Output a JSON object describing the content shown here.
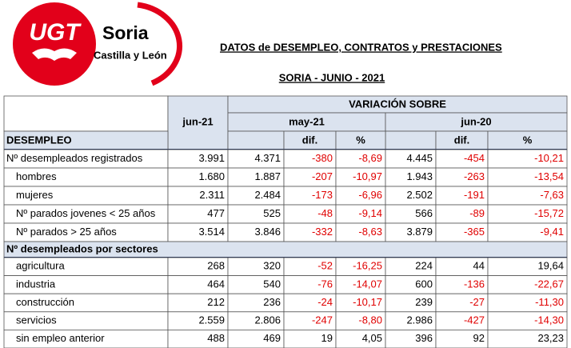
{
  "header": {
    "logo": "UGT",
    "org": "Soria",
    "region": "Castilla y León",
    "title": "DATOS de DESEMPLEO, CONTRATOS y PRESTACIONES",
    "subtitle": "SORIA - JUNIO - 2021"
  },
  "table": {
    "current": "jun-21",
    "group": "VARIACIÓN SOBRE",
    "periods": [
      "may-21",
      "jun-20"
    ],
    "subheaders": [
      "dif.",
      "%",
      "dif.",
      "%"
    ],
    "sections": [
      {
        "title": "DESEMPLEO",
        "rows": [
          [
            "Nº desempleados registrados",
            "3.991",
            "4.371",
            "-380",
            "-8,69",
            "4.445",
            "-454",
            "-10,21"
          ],
          [
            "hombres",
            "1.680",
            "1.887",
            "-207",
            "-10,97",
            "1.943",
            "-263",
            "-13,54"
          ],
          [
            "mujeres",
            "2.311",
            "2.484",
            "-173",
            "-6,96",
            "2.502",
            "-191",
            "-7,63"
          ],
          [
            "Nº parados jovenes < 25 años",
            "477",
            "525",
            "-48",
            "-9,14",
            "566",
            "-89",
            "-15,72"
          ],
          [
            "Nº parados > 25 años",
            "3.514",
            "3.846",
            "-332",
            "-8,63",
            "3.879",
            "-365",
            "-9,41"
          ]
        ]
      },
      {
        "title": "Nº desempleados por sectores",
        "rows": [
          [
            "agricultura",
            "268",
            "320",
            "-52",
            "-16,25",
            "224",
            "44",
            "19,64"
          ],
          [
            "industria",
            "464",
            "540",
            "-76",
            "-14,07",
            "600",
            "-136",
            "-22,67"
          ],
          [
            "construcción",
            "212",
            "236",
            "-24",
            "-10,17",
            "239",
            "-27",
            "-11,30"
          ],
          [
            "servicios",
            "2.559",
            "2.806",
            "-247",
            "-8,80",
            "2.986",
            "-427",
            "-14,30"
          ],
          [
            "sin empleo anterior",
            "488",
            "469",
            "19",
            "4,05",
            "396",
            "92",
            "23,23"
          ]
        ]
      }
    ]
  }
}
